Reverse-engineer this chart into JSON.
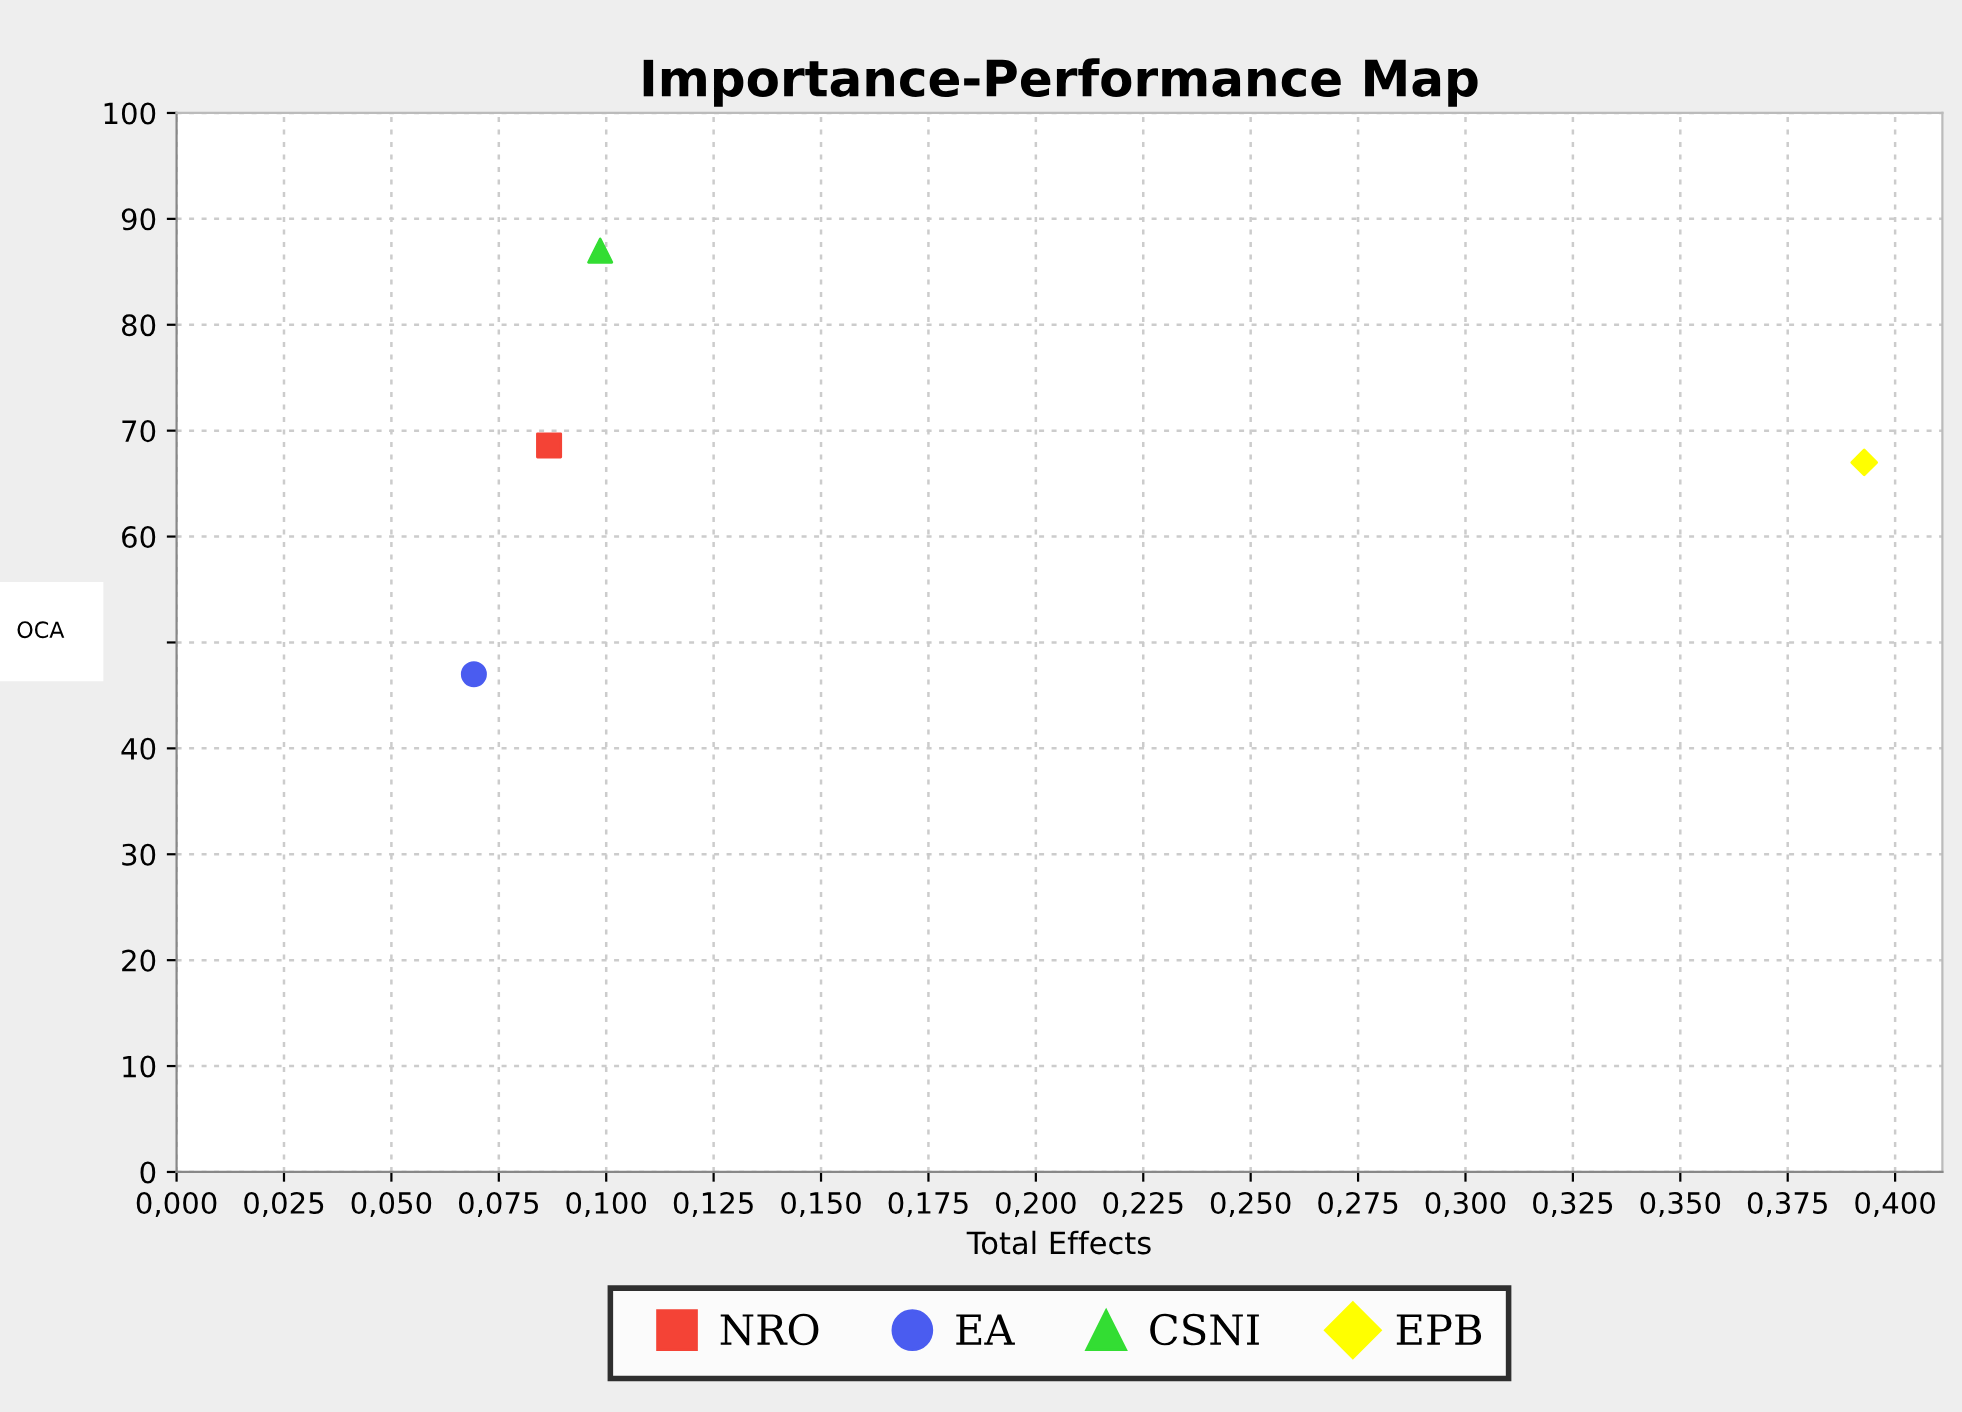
{
  "chart_data": {
    "type": "scatter",
    "title": "Importance-Performance Map",
    "xlabel": "Total Effects",
    "ylabel": "OCA",
    "series": [
      {
        "name": "NRO",
        "color": "#f44336",
        "marker": "square",
        "x": [
          0.0867
        ],
        "values": [
          68.6
        ]
      },
      {
        "name": "EA",
        "color": "#4a5cf0",
        "marker": "circle",
        "x": [
          0.0692
        ],
        "values": [
          47.0
        ]
      },
      {
        "name": "CSNI",
        "color": "#33dd33",
        "marker": "triangle",
        "x": [
          0.0986
        ],
        "values": [
          87.0
        ]
      },
      {
        "name": "EPB",
        "color": "#ffff00",
        "marker": "diamond",
        "x": [
          0.3928
        ],
        "values": [
          67.0
        ]
      }
    ],
    "xlim": [
      0,
      0.411
    ],
    "ylim": [
      0,
      100
    ],
    "xticks": [
      {
        "value": 0,
        "label": "0,000"
      },
      {
        "value": 0.025,
        "label": "0,025"
      },
      {
        "value": 0.05,
        "label": "0,050"
      },
      {
        "value": 0.075,
        "label": "0,075"
      },
      {
        "value": 0.1,
        "label": "0,100"
      },
      {
        "value": 0.125,
        "label": "0,125"
      },
      {
        "value": 0.15,
        "label": "0,150"
      },
      {
        "value": 0.175,
        "label": "0,175"
      },
      {
        "value": 0.2,
        "label": "0,200"
      },
      {
        "value": 0.225,
        "label": "0,225"
      },
      {
        "value": 0.25,
        "label": "0,250"
      },
      {
        "value": 0.275,
        "label": "0,275"
      },
      {
        "value": 0.3,
        "label": "0,300"
      },
      {
        "value": 0.325,
        "label": "0,325"
      },
      {
        "value": 0.35,
        "label": "0,350"
      },
      {
        "value": 0.375,
        "label": "0,375"
      },
      {
        "value": 0.4,
        "label": "0,400"
      }
    ],
    "yticks": [
      0,
      10,
      20,
      30,
      40,
      {
        "value": 50,
        "label": null
      },
      60,
      70,
      80,
      90,
      100
    ],
    "grid": true,
    "legend": "bottom"
  }
}
